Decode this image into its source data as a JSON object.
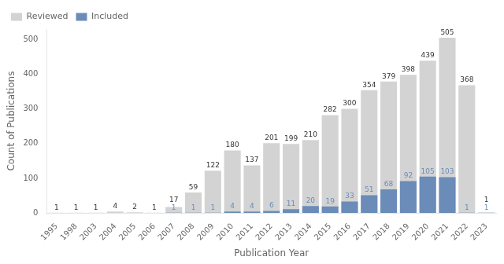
{
  "chart_data": {
    "type": "bar",
    "categories": [
      "1995",
      "1998",
      "2003",
      "2004",
      "2005",
      "2006",
      "2007",
      "2008",
      "2009",
      "2010",
      "2011",
      "2012",
      "2013",
      "2014",
      "2015",
      "2016",
      "2017",
      "2018",
      "2019",
      "2020",
      "2021",
      "2022",
      "2023"
    ],
    "series": [
      {
        "name": "Reviewed",
        "color": "#d3d3d3",
        "values": [
          1,
          1,
          1,
          4,
          2,
          1,
          17,
          59,
          122,
          180,
          137,
          201,
          199,
          210,
          282,
          300,
          354,
          379,
          398,
          439,
          505,
          368,
          1
        ]
      },
      {
        "name": "Included",
        "color": "#6b8cb8",
        "values": [
          0,
          0,
          0,
          0,
          0,
          0,
          1,
          1,
          1,
          4,
          4,
          6,
          11,
          20,
          19,
          33,
          51,
          68,
          92,
          105,
          103,
          1,
          1
        ]
      }
    ],
    "xlabel": "Publication Year",
    "ylabel": "Count of Publications",
    "ylim": [
      0,
      530
    ],
    "yticks": [
      0,
      100,
      200,
      300,
      400,
      500
    ],
    "grid": false,
    "legend": "upper left",
    "data_labels": true
  }
}
